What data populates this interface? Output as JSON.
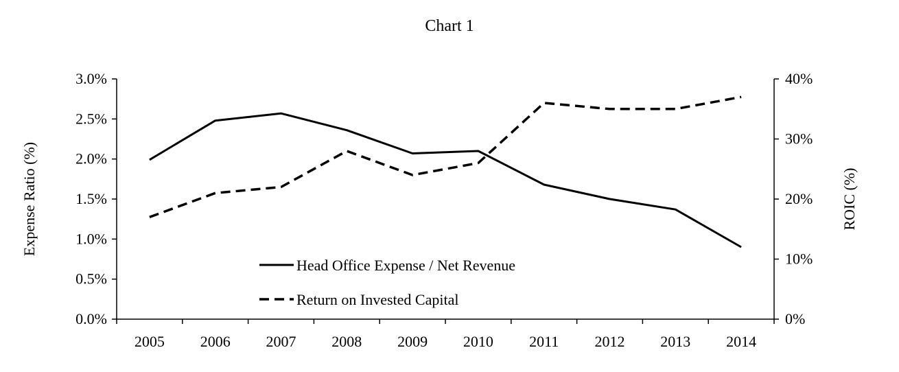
{
  "chart_data": {
    "type": "line",
    "title": "Chart 1",
    "x": [
      "2005",
      "2006",
      "2007",
      "2008",
      "2009",
      "2010",
      "2011",
      "2012",
      "2013",
      "2014"
    ],
    "y_left": {
      "label": "Expense Ratio (%)",
      "ylim": [
        0,
        3.0
      ],
      "ticks": [
        0,
        0.5,
        1.0,
        1.5,
        2.0,
        2.5,
        3.0
      ],
      "tick_labels": [
        "0.0%",
        "0.5%",
        "1.0%",
        "1.5%",
        "2.0%",
        "2.5%",
        "3.0%"
      ]
    },
    "y_right": {
      "label": "ROIC (%)",
      "ylim": [
        0,
        40
      ],
      "ticks": [
        0,
        10,
        20,
        30,
        40
      ],
      "tick_labels": [
        "0%",
        "10%",
        "20%",
        "30%",
        "40%"
      ]
    },
    "series": [
      {
        "name": "Head Office Expense / Net Revenue",
        "axis": "left",
        "style": "solid",
        "values": [
          1.99,
          2.48,
          2.57,
          2.36,
          2.07,
          2.1,
          1.68,
          1.5,
          1.37,
          0.9
        ]
      },
      {
        "name": "Return on Invested Capital",
        "axis": "right",
        "style": "dashed",
        "values": [
          17,
          21,
          22,
          28,
          24,
          26,
          36,
          35,
          35,
          37
        ]
      }
    ],
    "grid": false,
    "legend": "bottom-center inside plot",
    "colors": {
      "line": "#000000",
      "axis": "#000000"
    }
  }
}
